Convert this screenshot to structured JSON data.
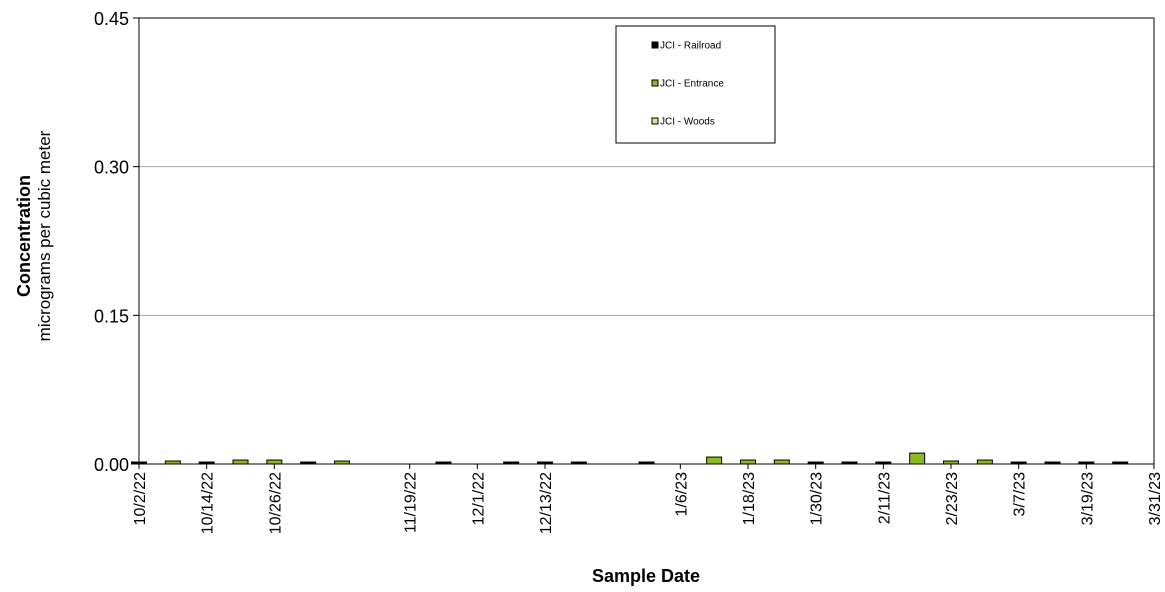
{
  "chart_data": {
    "type": "bar",
    "xlabel": "Sample Date",
    "ylabel": "Concentration",
    "ylabel_sub": "micrograms per cubic meter",
    "ylim": [
      0,
      0.45
    ],
    "yticks": [
      "0.00",
      "0.15",
      "0.30",
      "0.45"
    ],
    "ytick_values": [
      0,
      0.15,
      0.3,
      0.45
    ],
    "grid": true,
    "legend_position": "top-center",
    "xlim": [
      "10/2/22",
      "3/31/23"
    ],
    "xtick_labels": [
      "10/2/22",
      "10/14/22",
      "10/26/22",
      "11/19/22",
      "12/1/22",
      "12/13/22",
      "1/6/23",
      "1/18/23",
      "1/30/23",
      "2/11/23",
      "2/23/23",
      "3/7/23",
      "3/19/23",
      "3/31/23"
    ],
    "series": [
      {
        "name": "JCI - Railroad",
        "color": "#000000",
        "points": [
          {
            "x": "10/2/22",
            "y": 0.001
          },
          {
            "x": "10/14/22",
            "y": 0.002
          },
          {
            "x": "11/1/22",
            "y": 0.002
          },
          {
            "x": "11/25/22",
            "y": 0.002
          },
          {
            "x": "12/7/22",
            "y": 0.001
          },
          {
            "x": "12/13/22",
            "y": 0.002
          },
          {
            "x": "12/19/22",
            "y": 0.001
          },
          {
            "x": "12/31/22",
            "y": 0.001
          },
          {
            "x": "1/30/23",
            "y": 0.001
          },
          {
            "x": "2/5/23",
            "y": 0.001
          },
          {
            "x": "2/11/23",
            "y": 0.001
          },
          {
            "x": "3/7/23",
            "y": 0.002
          },
          {
            "x": "3/13/23",
            "y": 0.001
          },
          {
            "x": "3/19/23",
            "y": 0.002
          },
          {
            "x": "3/25/23",
            "y": 0.002
          }
        ]
      },
      {
        "name": "JCI - Entrance",
        "color": "#8dba1e",
        "points": [
          {
            "x": "10/8/22",
            "y": 0.003
          },
          {
            "x": "10/20/22",
            "y": 0.004
          },
          {
            "x": "10/26/22",
            "y": 0.004
          },
          {
            "x": "11/7/22",
            "y": 0.003
          },
          {
            "x": "1/12/23",
            "y": 0.007
          },
          {
            "x": "1/18/23",
            "y": 0.004
          },
          {
            "x": "1/24/23",
            "y": 0.004
          },
          {
            "x": "2/17/23",
            "y": 0.011
          },
          {
            "x": "2/23/23",
            "y": 0.003
          },
          {
            "x": "3/1/23",
            "y": 0.004
          }
        ]
      },
      {
        "name": "JCI - Woods",
        "color": "#d4e98a",
        "points": []
      }
    ]
  }
}
